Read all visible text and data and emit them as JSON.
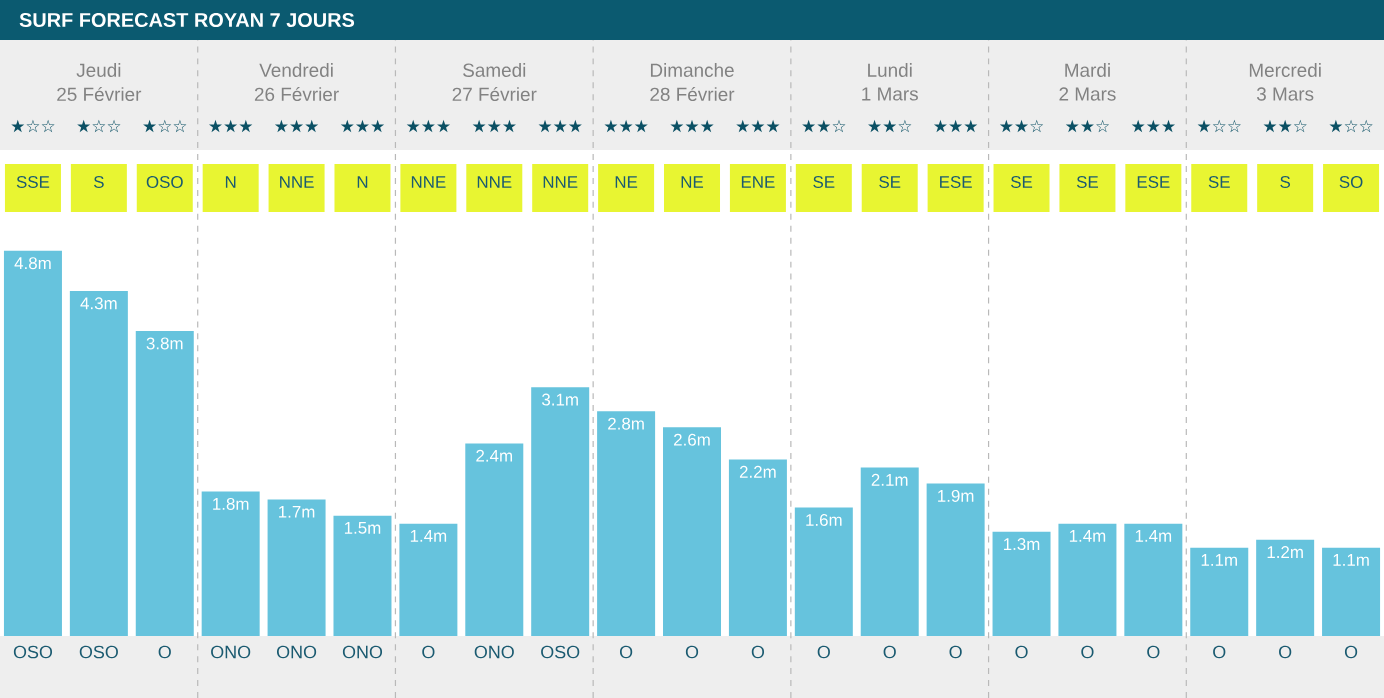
{
  "chart_data": {
    "type": "bar",
    "title": "SURF FORECAST ROYAN 7 JOURS",
    "categories": [
      "OSO",
      "OSO",
      "O",
      "ONO",
      "ONO",
      "ONO",
      "O",
      "ONO",
      "OSO",
      "O",
      "O",
      "O",
      "O",
      "O",
      "O",
      "O",
      "O",
      "O",
      "O",
      "O",
      "O"
    ],
    "values": [
      4.8,
      4.3,
      3.8,
      1.8,
      1.7,
      1.5,
      1.4,
      2.4,
      3.1,
      2.8,
      2.6,
      2.2,
      1.6,
      2.1,
      1.9,
      1.3,
      1.4,
      1.4,
      1.1,
      1.2,
      1.1
    ],
    "value_labels": [
      "4.8m",
      "4.3m",
      "3.8m",
      "1.8m",
      "1.7m",
      "1.5m",
      "1.4m",
      "2.4m",
      "3.1m",
      "2.8m",
      "2.6m",
      "2.2m",
      "1.6m",
      "2.1m",
      "1.9m",
      "1.3m",
      "1.4m",
      "1.4m",
      "1.1m",
      "1.2m",
      "1.1m"
    ],
    "color": "#66c3dd",
    "annotations": [
      "Jeudi",
      "Vendredi",
      "Samedi",
      "Dimanche",
      "Lundi",
      "Mardi",
      "Mercredi",
      "25 Février",
      "26 Février",
      "27 Février",
      "28 Février",
      "1 Mars",
      "2 Mars",
      "3 Mars",
      "★☆☆",
      "★☆☆",
      "★☆☆",
      "★★★",
      "★★★",
      "★★★",
      "★★★",
      "★★★",
      "★★★",
      "★★★",
      "★★★",
      "★★★",
      "★★☆",
      "★★☆",
      "★★★",
      "★★☆",
      "★★☆",
      "★★★",
      "★☆☆",
      "★★☆",
      "★☆☆",
      "SSE",
      "S",
      "OSO",
      "N",
      "NNE",
      "N",
      "NNE",
      "NNE",
      "NNE",
      "NE",
      "NE",
      "ENE",
      "SE",
      "SE",
      "ESE",
      "SE",
      "SE",
      "ESE",
      "SE",
      "S",
      "SO"
    ]
  }
}
